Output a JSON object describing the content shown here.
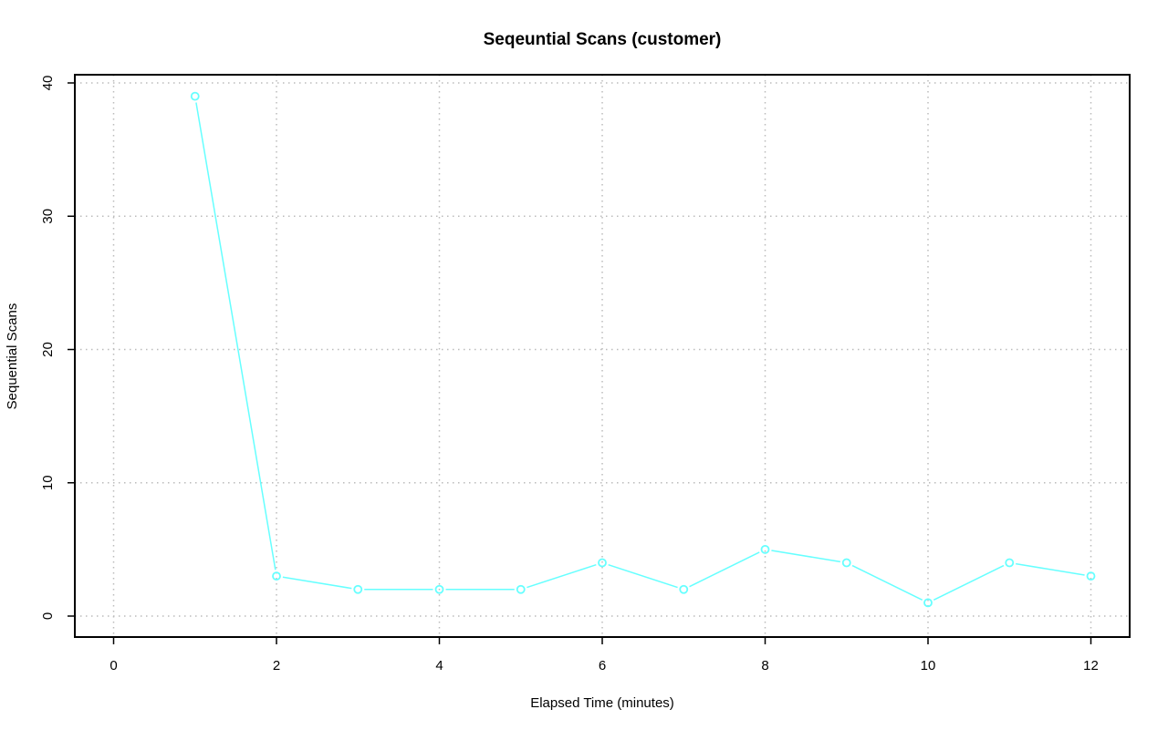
{
  "chart_data": {
    "type": "line",
    "title": "Seqeuntial Scans (customer)",
    "xlabel": "Elapsed Time (minutes)",
    "ylabel": "Sequential Scans",
    "xlim": [
      0,
      12
    ],
    "ylim": [
      0,
      40
    ],
    "xticks": [
      "0",
      "2",
      "4",
      "6",
      "8",
      "10",
      "12"
    ],
    "yticks": [
      "0",
      "10",
      "20",
      "30",
      "40"
    ],
    "grid": true,
    "grid_style": "dotted",
    "markers": "open-circle",
    "series": [
      {
        "color": "#66ffff",
        "x": [
          1,
          2,
          3,
          4,
          5,
          6,
          7,
          8,
          9,
          10,
          11,
          12
        ],
        "y": [
          39,
          3,
          2,
          2,
          2,
          4,
          2,
          5,
          4,
          1,
          4,
          3
        ]
      }
    ]
  },
  "colors": {
    "series": "#66ffff",
    "grid": "#bbbbbb",
    "axis": "#000000"
  }
}
